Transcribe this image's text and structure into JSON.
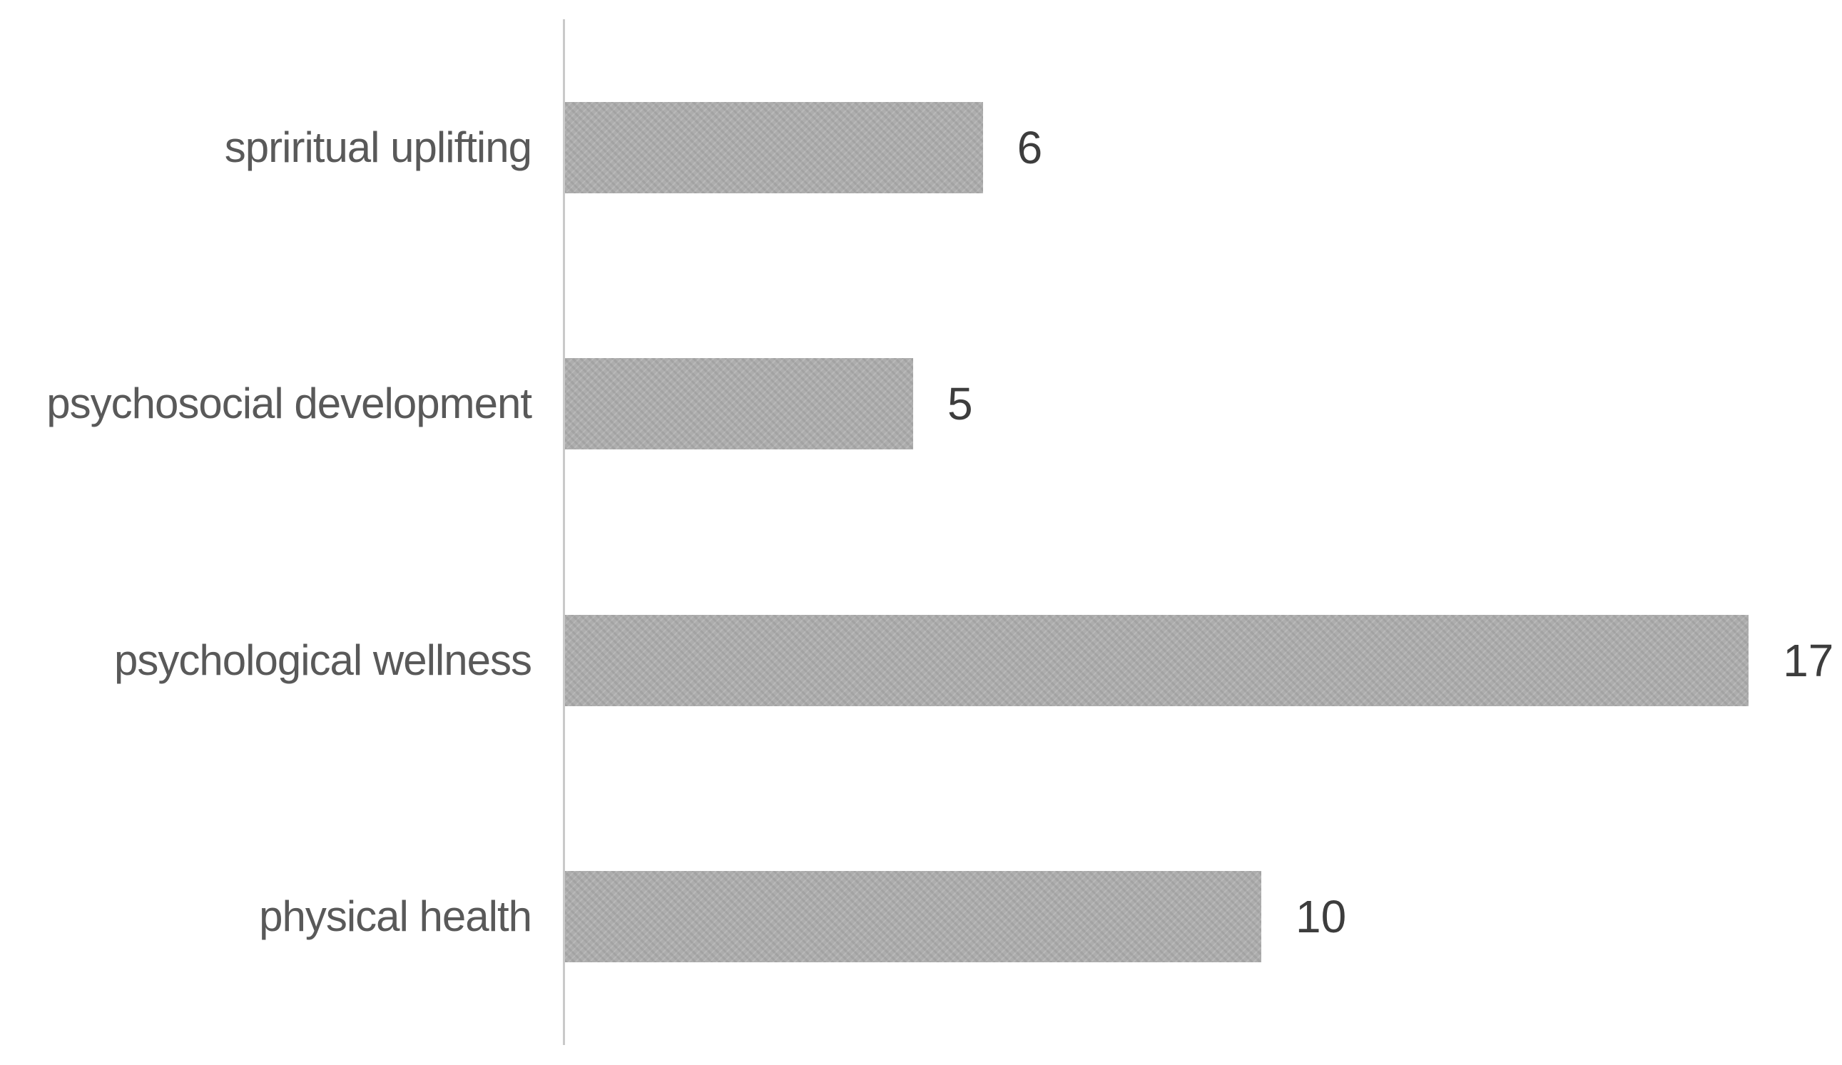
{
  "chart_data": {
    "type": "bar",
    "orientation": "horizontal",
    "title": "",
    "xlabel": "",
    "ylabel": "",
    "categories": [
      "spriritual uplifting",
      "psychosocial development",
      "psychological wellness",
      "physical health"
    ],
    "values": [
      6,
      5,
      17,
      10
    ],
    "data_labels": [
      "6",
      "5",
      "17",
      "10"
    ],
    "xlim": [
      0,
      18
    ],
    "grid": false,
    "legend": null,
    "axis_line": "left-vertical-only",
    "colors": {
      "bar_fill": "#adadad",
      "axis_line": "#c9c9c9",
      "category_label_text": "#595959",
      "value_label_text": "#3d3d3d",
      "background": "#ffffff"
    }
  }
}
